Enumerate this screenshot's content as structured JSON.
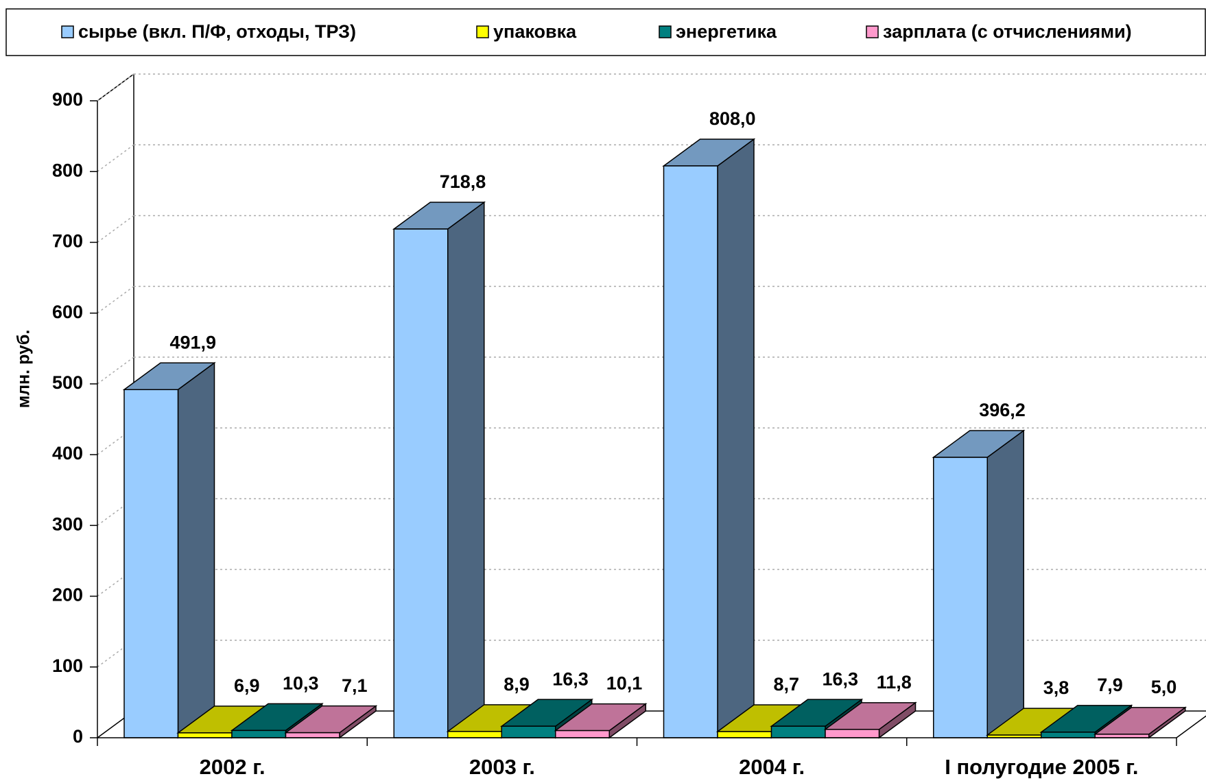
{
  "chart_data": {
    "type": "bar3d",
    "y_label": "млн. руб.",
    "categories": [
      "2002 г.",
      "2003 г.",
      "2004 г.",
      "I полугодие 2005 г."
    ],
    "series": [
      {
        "name": "сырье (вкл. П/Ф, отходы, ТРЗ)",
        "color": "#99ccff",
        "values": [
          491.9,
          718.8,
          808.0,
          396.2
        ],
        "value_labels": [
          "491,9",
          "718,8",
          "808,0",
          "396,2"
        ]
      },
      {
        "name": "упаковка",
        "color": "#ffff00",
        "values": [
          6.9,
          8.9,
          8.7,
          3.8
        ],
        "value_labels": [
          "6,9",
          "8,9",
          "8,7",
          "3,8"
        ]
      },
      {
        "name": "энергетика",
        "color": "#008080",
        "values": [
          10.3,
          16.3,
          16.3,
          7.9
        ],
        "value_labels": [
          "10,3",
          "16,3",
          "16,3",
          "7,9"
        ]
      },
      {
        "name": "зарплата (с отчислениями)",
        "color": "#ff99cc",
        "values": [
          7.1,
          10.1,
          11.8,
          5.0
        ],
        "value_labels": [
          "7,1",
          "10,1",
          "11,8",
          "5,0"
        ]
      }
    ],
    "ylim": [
      0,
      900
    ],
    "yticks": [
      0,
      100,
      200,
      300,
      400,
      500,
      600,
      700,
      800,
      900
    ],
    "grid": true,
    "legend": "top"
  }
}
